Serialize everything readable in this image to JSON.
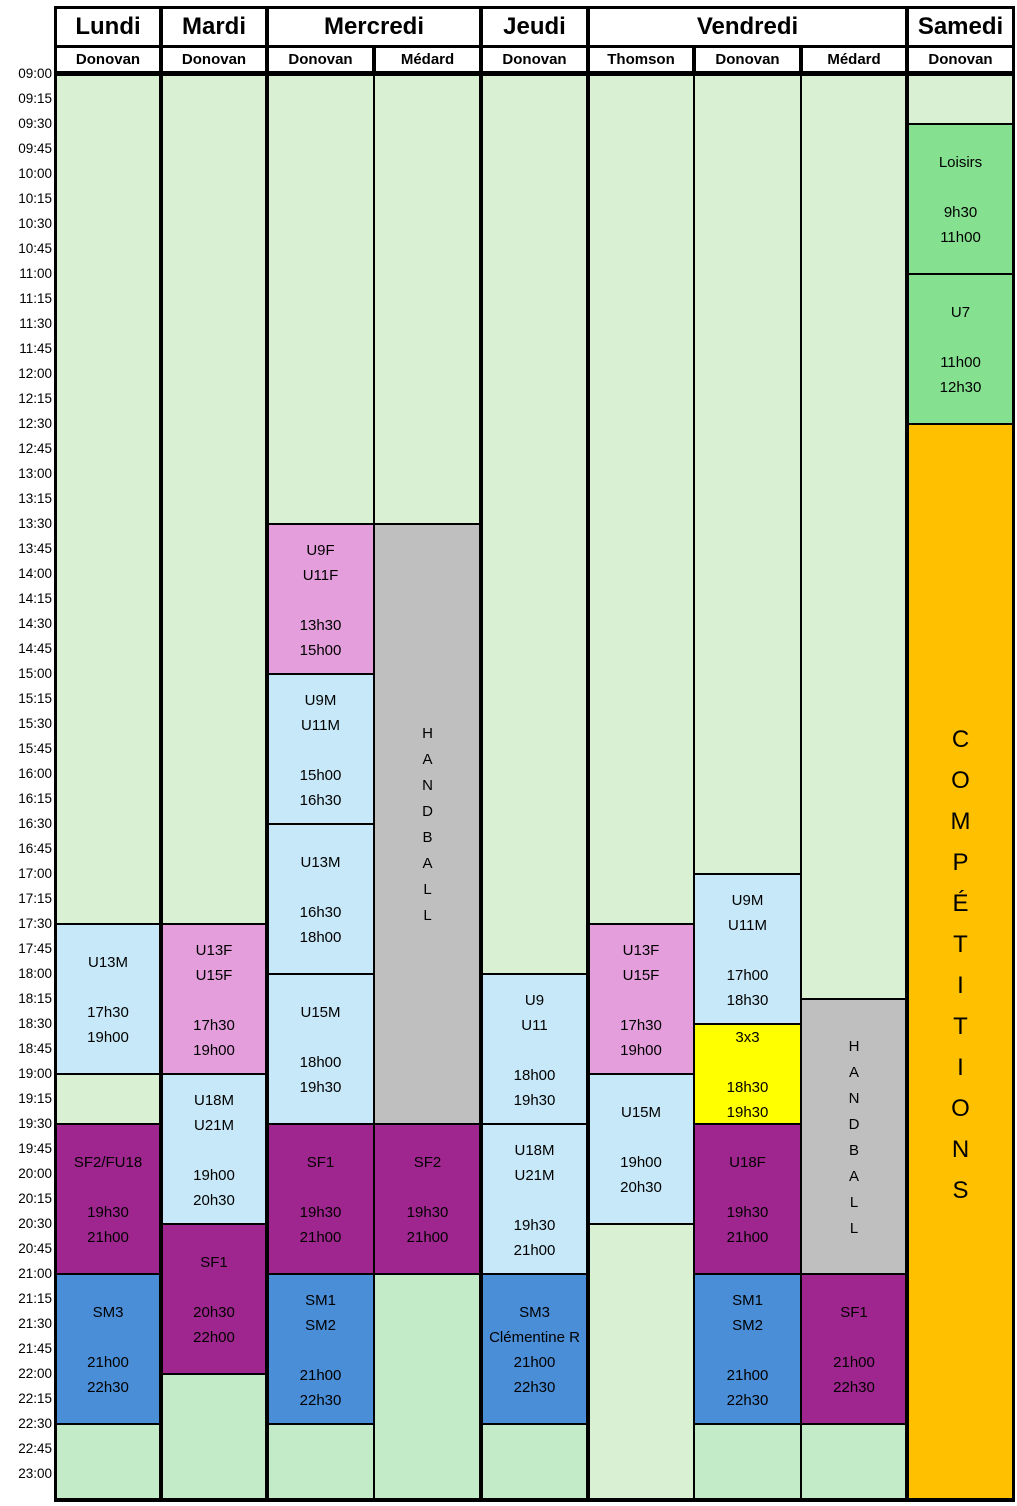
{
  "days": [
    "Lundi",
    "Mardi",
    "Mercredi",
    "Jeudi",
    "Vendredi",
    "Samedi"
  ],
  "subcolumns": [
    "Donovan",
    "Donovan",
    "Donovan",
    "Médard",
    "Donovan",
    "Thomson",
    "Donovan",
    "Médard",
    "Donovan"
  ],
  "times": [
    "09:00",
    "09:15",
    "09:30",
    "09:45",
    "10:00",
    "10:15",
    "10:30",
    "10:45",
    "11:00",
    "11:15",
    "11:30",
    "11:45",
    "12:00",
    "12:15",
    "12:30",
    "12:45",
    "13:00",
    "13:15",
    "13:30",
    "13:45",
    "14:00",
    "14:15",
    "14:30",
    "14:45",
    "15:00",
    "15:15",
    "15:30",
    "15:45",
    "16:00",
    "16:15",
    "16:30",
    "16:45",
    "17:00",
    "17:15",
    "17:30",
    "17:45",
    "18:00",
    "18:15",
    "18:30",
    "18:45",
    "19:00",
    "19:15",
    "19:30",
    "19:45",
    "20:00",
    "20:15",
    "20:30",
    "20:45",
    "21:00",
    "21:15",
    "21:30",
    "21:45",
    "22:00",
    "22:15",
    "22:30",
    "22:45",
    "23:00"
  ],
  "colors": {
    "free": "#d9f0d3",
    "free_late": "#c3ebc8",
    "loisirs": "#85e08f",
    "pink": "#e39edb",
    "light_blue": "#c6e8f8",
    "gray": "#bfbfbf",
    "purple": "#a0268f",
    "blue": "#4a8ed8",
    "yellow": "#ffff00",
    "orange": "#ffc000"
  },
  "blocks": [
    {
      "col": 0,
      "start": "09:00",
      "end": "17:30",
      "color": "free"
    },
    {
      "col": 0,
      "start": "17:30",
      "end": "19:00",
      "color": "light_blue",
      "lines": [
        "U13M",
        "",
        "17h30",
        "19h00"
      ]
    },
    {
      "col": 0,
      "start": "19:00",
      "end": "19:30",
      "color": "free"
    },
    {
      "col": 0,
      "start": "19:30",
      "end": "21:00",
      "color": "purple",
      "lines": [
        "SF2/FU18",
        "",
        "19h30",
        "21h00"
      ]
    },
    {
      "col": 0,
      "start": "21:00",
      "end": "22:30",
      "color": "blue",
      "lines": [
        "SM3",
        "",
        "21h00",
        "22h30"
      ]
    },
    {
      "col": 0,
      "start": "22:30",
      "end": "23:15",
      "color": "free_late"
    },
    {
      "col": 1,
      "start": "09:00",
      "end": "17:30",
      "color": "free"
    },
    {
      "col": 1,
      "start": "17:30",
      "end": "19:00",
      "color": "pink",
      "lines": [
        "U13F",
        "U15F",
        "",
        "17h30",
        "19h00"
      ]
    },
    {
      "col": 1,
      "start": "19:00",
      "end": "20:30",
      "color": "light_blue",
      "lines": [
        "U18M",
        "U21M",
        "",
        "19h00",
        "20h30"
      ]
    },
    {
      "col": 1,
      "start": "20:30",
      "end": "22:00",
      "color": "purple",
      "lines": [
        "SF1",
        "",
        "20h30",
        "22h00"
      ]
    },
    {
      "col": 1,
      "start": "22:00",
      "end": "23:15",
      "color": "free_late"
    },
    {
      "col": 2,
      "start": "09:00",
      "end": "13:30",
      "color": "free"
    },
    {
      "col": 2,
      "start": "13:30",
      "end": "15:00",
      "color": "pink",
      "lines": [
        "U9F",
        "U11F",
        "",
        "13h30",
        "15h00"
      ]
    },
    {
      "col": 2,
      "start": "15:00",
      "end": "16:30",
      "color": "light_blue",
      "lines": [
        "U9M",
        "U11M",
        "",
        "15h00",
        "16h30"
      ]
    },
    {
      "col": 2,
      "start": "16:30",
      "end": "18:00",
      "color": "light_blue",
      "lines": [
        "U13M",
        "",
        "16h30",
        "18h00"
      ]
    },
    {
      "col": 2,
      "start": "18:00",
      "end": "19:30",
      "color": "light_blue",
      "lines": [
        "U15M",
        "",
        "18h00",
        "19h30"
      ]
    },
    {
      "col": 2,
      "start": "19:30",
      "end": "21:00",
      "color": "purple",
      "lines": [
        "SF1",
        "",
        "19h30",
        "21h00"
      ]
    },
    {
      "col": 2,
      "start": "21:00",
      "end": "22:30",
      "color": "blue",
      "lines": [
        "SM1",
        "SM2",
        "",
        "21h00",
        "22h30"
      ]
    },
    {
      "col": 2,
      "start": "22:30",
      "end": "23:15",
      "color": "free_late"
    },
    {
      "col": 3,
      "start": "09:00",
      "end": "13:30",
      "color": "free"
    },
    {
      "col": 3,
      "start": "13:30",
      "end": "19:30",
      "color": "gray",
      "vertical": "HANDBALL"
    },
    {
      "col": 3,
      "start": "19:30",
      "end": "21:00",
      "color": "purple",
      "lines": [
        "SF2",
        "",
        "19h30",
        "21h00"
      ]
    },
    {
      "col": 3,
      "start": "21:00",
      "end": "23:15",
      "color": "free_late"
    },
    {
      "col": 4,
      "start": "09:00",
      "end": "18:00",
      "color": "free"
    },
    {
      "col": 4,
      "start": "18:00",
      "end": "19:30",
      "color": "light_blue",
      "lines": [
        "U9",
        "U11",
        "",
        "18h00",
        "19h30"
      ]
    },
    {
      "col": 4,
      "start": "19:30",
      "end": "21:00",
      "color": "light_blue",
      "lines": [
        "U18M",
        "U21M",
        "",
        "19h30",
        "21h00"
      ]
    },
    {
      "col": 4,
      "start": "21:00",
      "end": "22:30",
      "color": "blue",
      "lines": [
        "SM3",
        "Clémentine R",
        "21h00",
        "22h30"
      ]
    },
    {
      "col": 4,
      "start": "22:30",
      "end": "23:15",
      "color": "free_late"
    },
    {
      "col": 5,
      "start": "09:00",
      "end": "17:30",
      "color": "free"
    },
    {
      "col": 5,
      "start": "17:30",
      "end": "19:00",
      "color": "pink",
      "lines": [
        "U13F",
        "U15F",
        "",
        "17h30",
        "19h00"
      ]
    },
    {
      "col": 5,
      "start": "19:00",
      "end": "20:30",
      "color": "light_blue",
      "lines": [
        "U15M",
        "",
        "19h00",
        "20h30"
      ]
    },
    {
      "col": 5,
      "start": "20:30",
      "end": "23:15",
      "color": "free"
    },
    {
      "col": 6,
      "start": "09:00",
      "end": "17:00",
      "color": "free"
    },
    {
      "col": 6,
      "start": "17:00",
      "end": "18:30",
      "color": "light_blue",
      "lines": [
        "U9M",
        "U11M",
        "",
        "17h00",
        "18h30"
      ]
    },
    {
      "col": 6,
      "start": "18:30",
      "end": "19:30",
      "color": "yellow",
      "lines": [
        "3x3",
        "",
        "18h30",
        "19h30"
      ]
    },
    {
      "col": 6,
      "start": "19:30",
      "end": "21:00",
      "color": "purple",
      "lines": [
        "U18F",
        "",
        "19h30",
        "21h00"
      ]
    },
    {
      "col": 6,
      "start": "21:00",
      "end": "22:30",
      "color": "blue",
      "lines": [
        "SM1",
        "SM2",
        "",
        "21h00",
        "22h30"
      ]
    },
    {
      "col": 6,
      "start": "22:30",
      "end": "23:15",
      "color": "free_late"
    },
    {
      "col": 7,
      "start": "09:00",
      "end": "18:15",
      "color": "free"
    },
    {
      "col": 7,
      "start": "18:15",
      "end": "21:00",
      "color": "gray",
      "vertical": "HANDBALL"
    },
    {
      "col": 7,
      "start": "21:00",
      "end": "22:30",
      "color": "purple",
      "lines": [
        "SF1",
        "",
        "21h00",
        "22h30"
      ]
    },
    {
      "col": 7,
      "start": "22:30",
      "end": "23:15",
      "color": "free_late"
    },
    {
      "col": 8,
      "start": "09:00",
      "end": "09:30",
      "color": "free"
    },
    {
      "col": 8,
      "start": "09:30",
      "end": "11:00",
      "color": "loisirs",
      "lines": [
        "Loisirs",
        "",
        "9h30",
        "11h00"
      ]
    },
    {
      "col": 8,
      "start": "11:00",
      "end": "12:30",
      "color": "loisirs",
      "lines": [
        "U7",
        "",
        "11h00",
        "12h30"
      ]
    },
    {
      "col": 8,
      "start": "12:30",
      "end": "23:15",
      "color": "orange",
      "vertical": "COMPÉTITIONS"
    }
  ]
}
